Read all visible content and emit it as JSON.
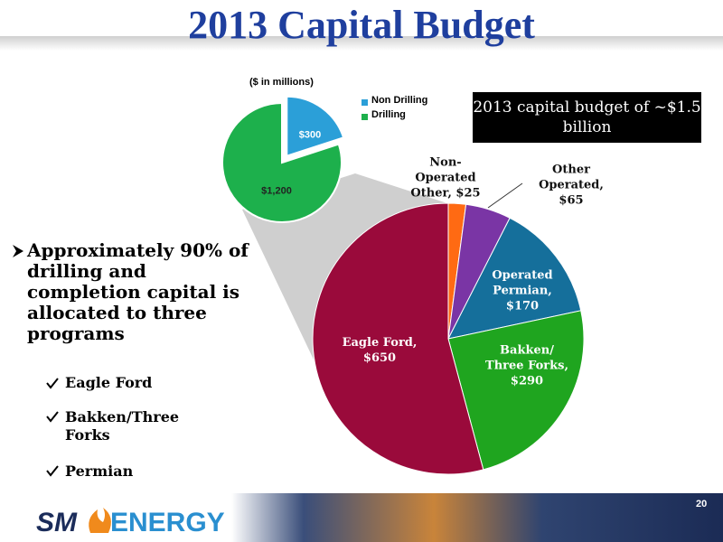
{
  "title": "2013 Capital Budget",
  "note": "2013 capital budget of ~$1.5 billion",
  "bullets": {
    "main": "Approximately 90% of drilling and completion capital is allocated to three programs",
    "items": [
      "Eagle Ford",
      "Bakken/Three Forks",
      "Permian"
    ]
  },
  "page_number": "20",
  "logo": {
    "left": "SM",
    "right": "ENERGY"
  },
  "chart_data": [
    {
      "type": "pie",
      "subtitle": "($ in millions)",
      "categories": [
        "Non Drilling",
        "Drilling"
      ],
      "values": [
        300,
        1200
      ],
      "value_labels": [
        "$300",
        "$1,200"
      ],
      "colors": [
        "#2b9fd8",
        "#1db04c"
      ],
      "exploded": [
        true,
        false
      ],
      "legend": "top right"
    },
    {
      "type": "pie",
      "labels": [
        "Non-Operated Other, $25",
        "Other Operated, $65",
        "Operated Permian, $170",
        "Bakken/ Three Forks, $290",
        "Eagle Ford, $650"
      ],
      "values": [
        25,
        65,
        170,
        290,
        650
      ],
      "colors": [
        "#ff6a13",
        "#7a35a5",
        "#156f9b",
        "#1fa51f",
        "#9a0a3b"
      ]
    }
  ]
}
